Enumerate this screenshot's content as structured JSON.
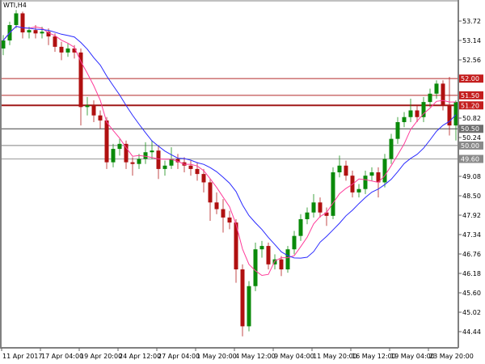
{
  "chart_data": {
    "type": "candlestick",
    "title": "WTI,H4",
    "ylim": [
      44.2,
      54.35
    ],
    "yticks": [
      "53.72",
      "53.14",
      "52.56",
      "50.82",
      "50.24",
      "49.08",
      "48.50",
      "47.92",
      "47.34",
      "46.76",
      "46.18",
      "45.60",
      "45.02",
      "44.44"
    ],
    "xticks": [
      {
        "label": "11 Apr 2017",
        "candle": 0
      },
      {
        "label": "17 Apr 04:00",
        "candle": 6
      },
      {
        "label": "19 Apr 20:00",
        "candle": 12
      },
      {
        "label": "24 Apr 12:00",
        "candle": 18
      },
      {
        "label": "27 Apr 04:00",
        "candle": 24
      },
      {
        "label": "1 May 20:00",
        "candle": 30
      },
      {
        "label": "4 May 12:00",
        "candle": 36
      },
      {
        "label": "9 May 04:00",
        "candle": 42
      },
      {
        "label": "11 May 20:00",
        "candle": 48
      },
      {
        "label": "16 May 12:00",
        "candle": 54
      },
      {
        "label": "19 May 04:00",
        "candle": 60
      },
      {
        "label": "23 May 20:00",
        "candle": 66
      }
    ],
    "levels": [
      {
        "label": "52.00",
        "value": 52.0,
        "color": "#b22a2a",
        "badge": "#c41e1e"
      },
      {
        "label": "51.50",
        "value": 51.5,
        "color": "#b22a2a",
        "badge": "#c41e1e"
      },
      {
        "label": "51.20",
        "value": 51.2,
        "color": "#a01818",
        "badge": "#c41e1e",
        "thick": true
      },
      {
        "label": "50.50",
        "value": 50.5,
        "color": "#404040",
        "badge": "#6e6e6e"
      },
      {
        "label": "50.00",
        "value": 50.0,
        "color": "#808080",
        "badge": "#8a8a8a"
      },
      {
        "label": "49.60",
        "value": 49.6,
        "color": "#9a9a9a",
        "badge": "#8a8a8a"
      }
    ],
    "colors": {
      "up": "#0a8a0a",
      "down": "#b01010",
      "fast_ma": "#ff3c9a",
      "slow_ma": "#2a2aff"
    },
    "ohlc": [
      [
        52.9,
        53.3,
        52.7,
        53.14
      ],
      [
        53.14,
        53.7,
        53.0,
        53.6
      ],
      [
        53.6,
        54.05,
        53.5,
        53.95
      ],
      [
        53.95,
        54.0,
        53.2,
        53.38
      ],
      [
        53.38,
        53.55,
        53.2,
        53.45
      ],
      [
        53.45,
        53.6,
        53.2,
        53.35
      ],
      [
        53.35,
        53.55,
        53.2,
        53.4
      ],
      [
        53.4,
        53.5,
        53.0,
        53.26
      ],
      [
        53.26,
        53.35,
        52.8,
        52.95
      ],
      [
        52.95,
        53.1,
        52.55,
        52.78
      ],
      [
        52.78,
        53.05,
        52.65,
        52.9
      ],
      [
        52.9,
        53.0,
        52.6,
        52.78
      ],
      [
        52.78,
        52.9,
        50.6,
        51.15
      ],
      [
        51.15,
        51.45,
        50.9,
        51.2
      ],
      [
        51.2,
        51.35,
        50.7,
        50.9
      ],
      [
        50.9,
        51.05,
        50.5,
        50.75
      ],
      [
        50.75,
        50.85,
        49.3,
        49.5
      ],
      [
        49.5,
        50.05,
        49.35,
        49.9
      ],
      [
        49.9,
        50.2,
        49.7,
        50.05
      ],
      [
        50.05,
        50.15,
        49.3,
        49.5
      ],
      [
        49.5,
        49.65,
        49.1,
        49.45
      ],
      [
        49.45,
        49.75,
        49.3,
        49.6
      ],
      [
        49.6,
        50.1,
        49.45,
        49.8
      ],
      [
        49.8,
        50.15,
        49.6,
        49.85
      ],
      [
        49.85,
        50.0,
        49.0,
        49.3
      ],
      [
        49.3,
        49.55,
        49.1,
        49.4
      ],
      [
        49.4,
        49.95,
        49.3,
        49.6
      ],
      [
        49.6,
        49.75,
        49.3,
        49.5
      ],
      [
        49.5,
        49.65,
        49.2,
        49.4
      ],
      [
        49.4,
        49.55,
        49.1,
        49.3
      ],
      [
        49.3,
        49.5,
        48.95,
        49.15
      ],
      [
        49.15,
        49.3,
        48.6,
        48.9
      ],
      [
        48.9,
        49.0,
        47.75,
        48.3
      ],
      [
        48.3,
        48.6,
        47.95,
        48.1
      ],
      [
        48.1,
        48.4,
        47.4,
        47.85
      ],
      [
        47.85,
        48.05,
        47.5,
        47.7
      ],
      [
        47.7,
        47.8,
        45.9,
        46.3
      ],
      [
        46.3,
        46.45,
        44.3,
        44.6
      ],
      [
        44.6,
        45.95,
        44.45,
        45.8
      ],
      [
        45.8,
        47.1,
        45.65,
        46.9
      ],
      [
        46.9,
        47.15,
        46.65,
        47.0
      ],
      [
        47.0,
        47.1,
        46.3,
        46.45
      ],
      [
        46.45,
        46.75,
        46.3,
        46.6
      ],
      [
        46.6,
        46.7,
        46.1,
        46.3
      ],
      [
        46.3,
        47.0,
        46.2,
        46.9
      ],
      [
        46.9,
        47.45,
        46.75,
        47.3
      ],
      [
        47.3,
        47.95,
        47.15,
        47.8
      ],
      [
        47.8,
        48.15,
        47.65,
        48.0
      ],
      [
        48.0,
        48.55,
        47.85,
        48.3
      ],
      [
        48.3,
        48.45,
        47.85,
        48.0
      ],
      [
        48.0,
        48.15,
        47.6,
        47.9
      ],
      [
        47.9,
        49.35,
        47.8,
        49.2
      ],
      [
        49.2,
        49.7,
        49.05,
        49.4
      ],
      [
        49.4,
        49.55,
        48.95,
        49.1
      ],
      [
        49.1,
        49.25,
        48.45,
        48.6
      ],
      [
        48.6,
        48.85,
        48.45,
        48.7
      ],
      [
        48.7,
        49.25,
        48.55,
        49.1
      ],
      [
        49.1,
        49.35,
        48.95,
        49.2
      ],
      [
        49.2,
        49.35,
        48.45,
        48.9
      ],
      [
        48.9,
        49.75,
        48.75,
        49.6
      ],
      [
        49.6,
        50.35,
        49.45,
        50.2
      ],
      [
        50.2,
        50.85,
        50.05,
        50.7
      ],
      [
        50.7,
        51.0,
        50.55,
        50.85
      ],
      [
        50.85,
        51.4,
        50.7,
        51.05
      ],
      [
        51.05,
        51.2,
        50.7,
        50.85
      ],
      [
        50.85,
        51.45,
        50.7,
        51.3
      ],
      [
        51.3,
        51.7,
        51.15,
        51.55
      ],
      [
        51.55,
        51.95,
        51.4,
        51.85
      ],
      [
        51.85,
        51.95,
        51.05,
        51.2
      ],
      [
        51.2,
        52.05,
        50.3,
        50.6
      ],
      [
        50.6,
        51.35,
        50.15,
        51.3
      ]
    ]
  }
}
